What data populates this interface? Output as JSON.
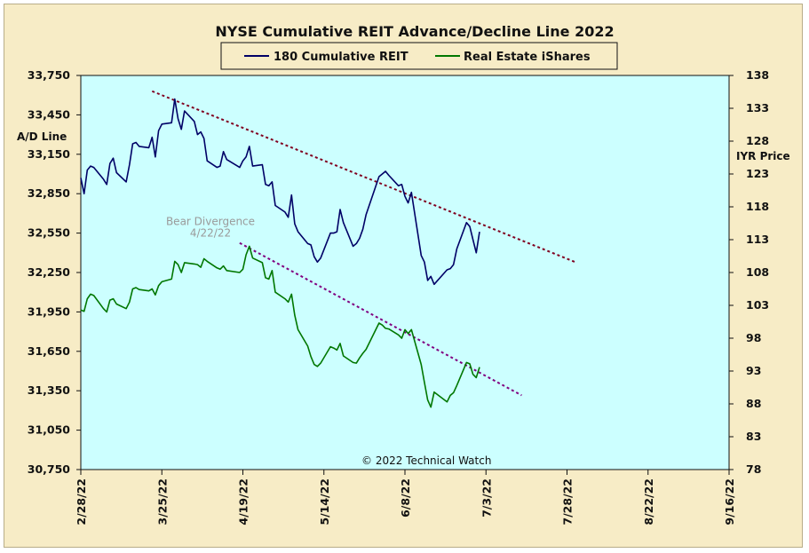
{
  "chart_data": {
    "type": "line",
    "title": "NYSE Cumulative  REIT Advance/Decline  Line 2022",
    "copyright": "© 2022 Technical  Watch",
    "ylabel_left": "A/D Line",
    "ylabel_right": "IYR Price",
    "categories": [
      "2/28/22",
      "3/25/22",
      "4/19/22",
      "5/14/22",
      "6/8/22",
      "7/3/22",
      "7/28/22",
      "8/22/22",
      "9/16/22"
    ],
    "x_start": "2022-02-28",
    "x_end": "2022-09-16",
    "y_left": {
      "min": 30750,
      "max": 33750,
      "ticks": [
        "30,750",
        "31,050",
        "31,350",
        "31,650",
        "31,950",
        "32,250",
        "32,550",
        "32,850",
        "33,150",
        "33,450",
        "33,750"
      ]
    },
    "y_right": {
      "min": 78,
      "max": 138,
      "ticks": [
        "78",
        "83",
        "88",
        "93",
        "98",
        "103",
        "108",
        "113",
        "118",
        "123",
        "128",
        "133",
        "138"
      ]
    },
    "grid": false,
    "legend": {
      "position": "top-center",
      "frame": true
    },
    "colors": {
      "plot_bg": "#ccffff",
      "frame_bg": "#f7ecc6",
      "ad_line": "#000066",
      "iyr": "#007700",
      "trend": "#800020",
      "trend_light": "#800080"
    },
    "series": [
      {
        "name": "180 Cumulative REIT",
        "axis": "left",
        "color": "#000066",
        "points": [
          [
            "2022-02-28",
            32970
          ],
          [
            "2022-03-01",
            32850
          ],
          [
            "2022-03-02",
            33030
          ],
          [
            "2022-03-03",
            33060
          ],
          [
            "2022-03-04",
            33050
          ],
          [
            "2022-03-07",
            32960
          ],
          [
            "2022-03-08",
            32920
          ],
          [
            "2022-03-09",
            33080
          ],
          [
            "2022-03-10",
            33120
          ],
          [
            "2022-03-11",
            33010
          ],
          [
            "2022-03-14",
            32940
          ],
          [
            "2022-03-15",
            33070
          ],
          [
            "2022-03-16",
            33230
          ],
          [
            "2022-03-17",
            33240
          ],
          [
            "2022-03-18",
            33210
          ],
          [
            "2022-03-21",
            33200
          ],
          [
            "2022-03-22",
            33280
          ],
          [
            "2022-03-23",
            33130
          ],
          [
            "2022-03-24",
            33330
          ],
          [
            "2022-03-25",
            33380
          ],
          [
            "2022-03-28",
            33390
          ],
          [
            "2022-03-29",
            33570
          ],
          [
            "2022-03-30",
            33420
          ],
          [
            "2022-03-31",
            33340
          ],
          [
            "2022-04-01",
            33480
          ],
          [
            "2022-04-04",
            33400
          ],
          [
            "2022-04-05",
            33300
          ],
          [
            "2022-04-06",
            33320
          ],
          [
            "2022-04-07",
            33270
          ],
          [
            "2022-04-08",
            33100
          ],
          [
            "2022-04-11",
            33050
          ],
          [
            "2022-04-12",
            33060
          ],
          [
            "2022-04-13",
            33170
          ],
          [
            "2022-04-14",
            33110
          ],
          [
            "2022-04-18",
            33050
          ],
          [
            "2022-04-19",
            33100
          ],
          [
            "2022-04-20",
            33130
          ],
          [
            "2022-04-21",
            33210
          ],
          [
            "2022-04-22",
            33060
          ],
          [
            "2022-04-25",
            33070
          ],
          [
            "2022-04-26",
            32920
          ],
          [
            "2022-04-27",
            32910
          ],
          [
            "2022-04-28",
            32940
          ],
          [
            "2022-04-29",
            32760
          ],
          [
            "2022-05-02",
            32710
          ],
          [
            "2022-05-03",
            32670
          ],
          [
            "2022-05-04",
            32840
          ],
          [
            "2022-05-05",
            32620
          ],
          [
            "2022-05-06",
            32560
          ],
          [
            "2022-05-09",
            32470
          ],
          [
            "2022-05-10",
            32460
          ],
          [
            "2022-05-11",
            32370
          ],
          [
            "2022-05-12",
            32330
          ],
          [
            "2022-05-13",
            32360
          ],
          [
            "2022-05-16",
            32550
          ],
          [
            "2022-05-17",
            32550
          ],
          [
            "2022-05-18",
            32560
          ],
          [
            "2022-05-19",
            32730
          ],
          [
            "2022-05-20",
            32630
          ],
          [
            "2022-05-23",
            32450
          ],
          [
            "2022-05-24",
            32470
          ],
          [
            "2022-05-25",
            32510
          ],
          [
            "2022-05-26",
            32580
          ],
          [
            "2022-05-27",
            32690
          ],
          [
            "2022-05-31",
            32980
          ],
          [
            "2022-06-01",
            33000
          ],
          [
            "2022-06-02",
            33020
          ],
          [
            "2022-06-03",
            32990
          ],
          [
            "2022-06-06",
            32910
          ],
          [
            "2022-06-07",
            32920
          ],
          [
            "2022-06-08",
            32830
          ],
          [
            "2022-06-09",
            32780
          ],
          [
            "2022-06-10",
            32860
          ],
          [
            "2022-06-13",
            32380
          ],
          [
            "2022-06-14",
            32330
          ],
          [
            "2022-06-15",
            32190
          ],
          [
            "2022-06-16",
            32220
          ],
          [
            "2022-06-17",
            32160
          ],
          [
            "2022-06-21",
            32270
          ],
          [
            "2022-06-22",
            32280
          ],
          [
            "2022-06-23",
            32310
          ],
          [
            "2022-06-24",
            32430
          ],
          [
            "2022-06-27",
            32630
          ],
          [
            "2022-06-28",
            32600
          ],
          [
            "2022-06-29",
            32500
          ],
          [
            "2022-06-30",
            32400
          ],
          [
            "2022-07-01",
            32560
          ]
        ]
      },
      {
        "name": "Real Estate iShares",
        "axis": "right",
        "color": "#007700",
        "points": [
          [
            "2022-02-28",
            102.3
          ],
          [
            "2022-03-01",
            102.1
          ],
          [
            "2022-03-02",
            104.0
          ],
          [
            "2022-03-03",
            104.7
          ],
          [
            "2022-03-04",
            104.5
          ],
          [
            "2022-03-07",
            102.5
          ],
          [
            "2022-03-08",
            102.0
          ],
          [
            "2022-03-09",
            103.8
          ],
          [
            "2022-03-10",
            104.0
          ],
          [
            "2022-03-11",
            103.2
          ],
          [
            "2022-03-14",
            102.5
          ],
          [
            "2022-03-15",
            103.5
          ],
          [
            "2022-03-16",
            105.5
          ],
          [
            "2022-03-17",
            105.7
          ],
          [
            "2022-03-18",
            105.4
          ],
          [
            "2022-03-21",
            105.2
          ],
          [
            "2022-03-22",
            105.5
          ],
          [
            "2022-03-23",
            104.6
          ],
          [
            "2022-03-24",
            106.0
          ],
          [
            "2022-03-25",
            106.6
          ],
          [
            "2022-03-28",
            107.0
          ],
          [
            "2022-03-29",
            109.7
          ],
          [
            "2022-03-30",
            109.2
          ],
          [
            "2022-03-31",
            108.0
          ],
          [
            "2022-04-01",
            109.5
          ],
          [
            "2022-04-04",
            109.3
          ],
          [
            "2022-04-05",
            109.2
          ],
          [
            "2022-04-06",
            108.8
          ],
          [
            "2022-04-07",
            110.1
          ],
          [
            "2022-04-08",
            109.7
          ],
          [
            "2022-04-11",
            108.7
          ],
          [
            "2022-04-12",
            108.5
          ],
          [
            "2022-04-13",
            109.0
          ],
          [
            "2022-04-14",
            108.3
          ],
          [
            "2022-04-18",
            108.0
          ],
          [
            "2022-04-19",
            108.5
          ],
          [
            "2022-04-20",
            110.7
          ],
          [
            "2022-04-21",
            112.0
          ],
          [
            "2022-04-22",
            110.2
          ],
          [
            "2022-04-25",
            109.5
          ],
          [
            "2022-04-26",
            107.2
          ],
          [
            "2022-04-27",
            107.0
          ],
          [
            "2022-04-28",
            108.3
          ],
          [
            "2022-04-29",
            105.0
          ],
          [
            "2022-05-02",
            104.0
          ],
          [
            "2022-05-03",
            103.5
          ],
          [
            "2022-05-04",
            104.7
          ],
          [
            "2022-05-05",
            101.5
          ],
          [
            "2022-05-06",
            99.3
          ],
          [
            "2022-05-09",
            96.8
          ],
          [
            "2022-05-10",
            95.2
          ],
          [
            "2022-05-11",
            94.0
          ],
          [
            "2022-05-12",
            93.7
          ],
          [
            "2022-05-13",
            94.2
          ],
          [
            "2022-05-16",
            96.7
          ],
          [
            "2022-05-17",
            96.5
          ],
          [
            "2022-05-18",
            96.2
          ],
          [
            "2022-05-19",
            97.2
          ],
          [
            "2022-05-20",
            95.3
          ],
          [
            "2022-05-23",
            94.3
          ],
          [
            "2022-05-24",
            94.2
          ],
          [
            "2022-05-25",
            95.0
          ],
          [
            "2022-05-26",
            95.7
          ],
          [
            "2022-05-27",
            96.3
          ],
          [
            "2022-05-31",
            100.3
          ],
          [
            "2022-06-01",
            100.0
          ],
          [
            "2022-06-02",
            99.5
          ],
          [
            "2022-06-03",
            99.4
          ],
          [
            "2022-06-06",
            98.5
          ],
          [
            "2022-06-07",
            98.0
          ],
          [
            "2022-06-08",
            99.3
          ],
          [
            "2022-06-09",
            98.7
          ],
          [
            "2022-06-10",
            99.3
          ],
          [
            "2022-06-13",
            94.0
          ],
          [
            "2022-06-14",
            91.3
          ],
          [
            "2022-06-15",
            88.6
          ],
          [
            "2022-06-16",
            87.5
          ],
          [
            "2022-06-17",
            89.8
          ],
          [
            "2022-06-21",
            88.3
          ],
          [
            "2022-06-22",
            89.3
          ],
          [
            "2022-06-23",
            89.7
          ],
          [
            "2022-06-24",
            90.8
          ],
          [
            "2022-06-27",
            94.3
          ],
          [
            "2022-06-28",
            94.1
          ],
          [
            "2022-06-29",
            92.5
          ],
          [
            "2022-06-30",
            92.0
          ],
          [
            "2022-07-01",
            93.6
          ]
        ]
      }
    ],
    "trendlines": [
      {
        "axis": "left",
        "color": "#800020",
        "from": [
          "2022-03-22",
          33630
        ],
        "to": [
          "2022-07-31",
          32325
        ]
      },
      {
        "axis": "right",
        "color": "#800080",
        "from": [
          "2022-04-18",
          112.5
        ],
        "to": [
          "2022-07-14",
          89.3
        ]
      }
    ],
    "annotations": [
      {
        "text": "Bear Divergence",
        "axis": "right",
        "at": [
          "2022-04-09",
          115.2
        ]
      },
      {
        "text": "4/22/22",
        "axis": "right",
        "at": [
          "2022-04-09",
          113.5
        ]
      }
    ]
  }
}
